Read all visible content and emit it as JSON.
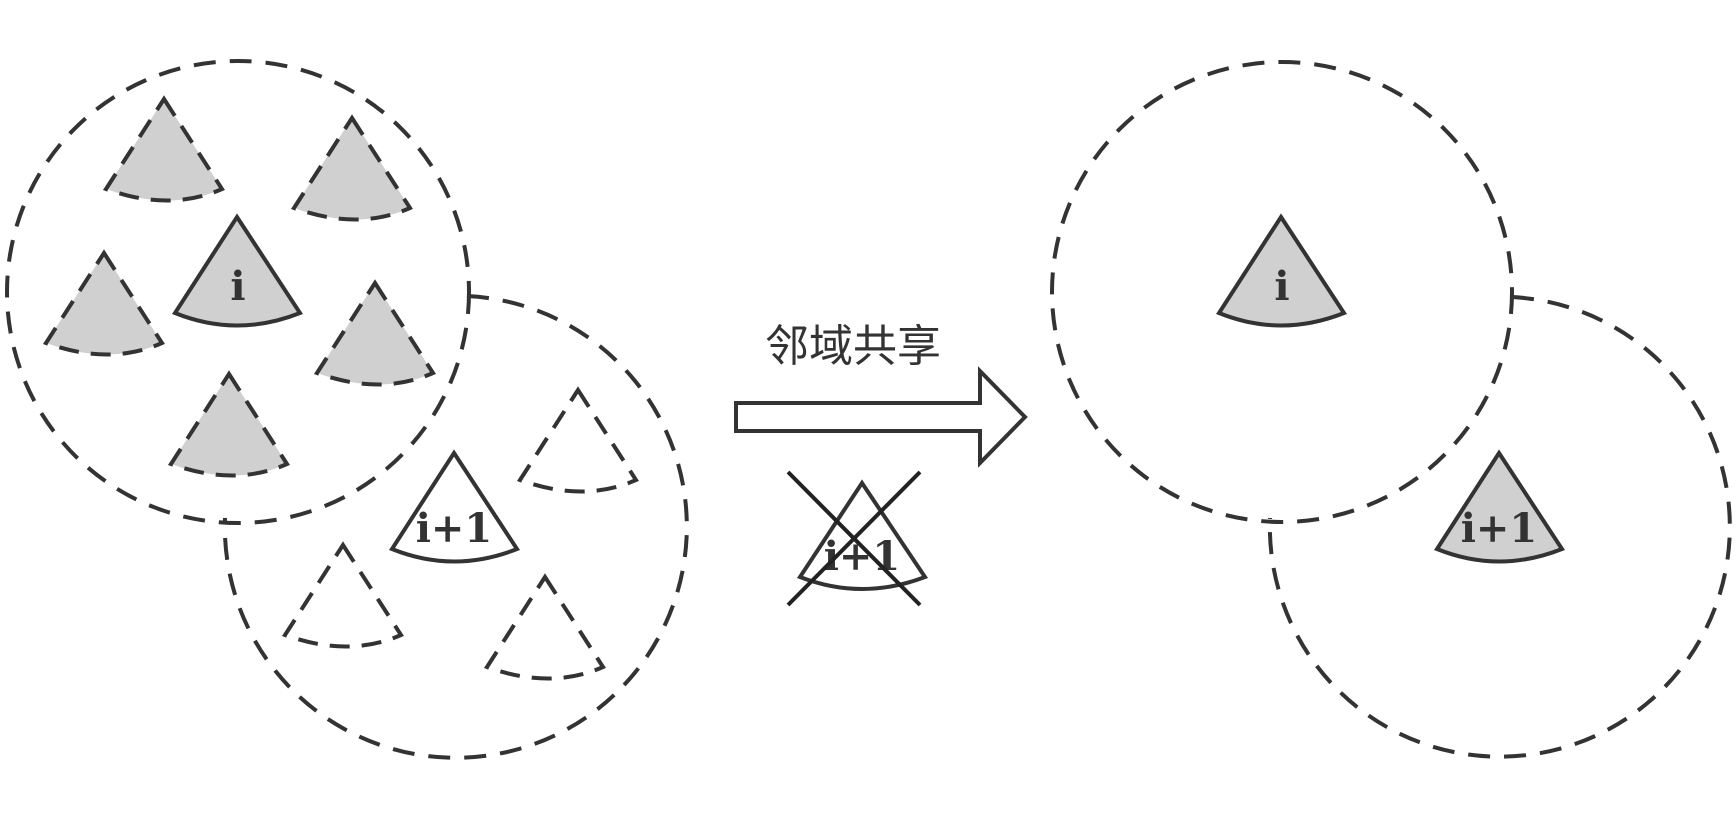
{
  "labels": {
    "agent_i": "i",
    "agent_next": "i+1",
    "arrow_caption": "邻域共享",
    "crossed_agent": "i+1"
  },
  "colors": {
    "stroke": "#333333",
    "agent_fill": "#d0d0d0",
    "background": "#ffffff"
  }
}
